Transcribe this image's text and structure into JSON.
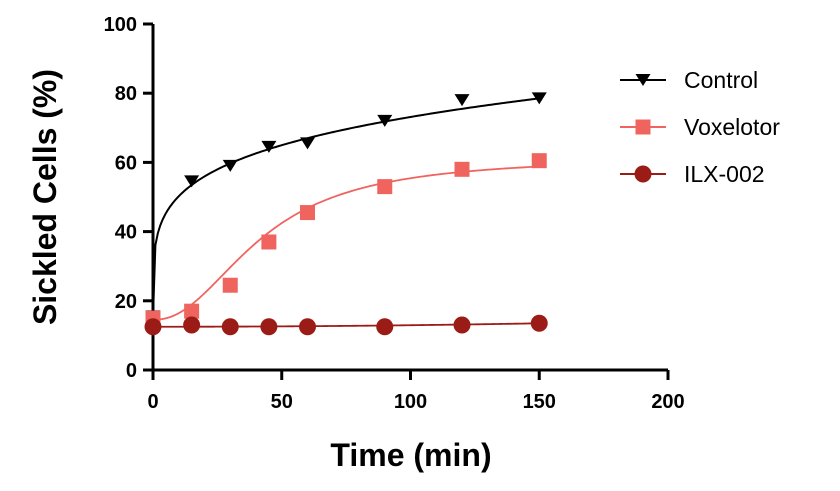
{
  "chart_data": {
    "type": "scatter",
    "title": "",
    "xlabel": "Time (min)",
    "ylabel": "Sickled Cells (%)",
    "xlim": [
      0,
      200
    ],
    "ylim": [
      0,
      100
    ],
    "xticks": [
      0,
      50,
      100,
      150,
      200
    ],
    "yticks": [
      0,
      20,
      40,
      60,
      80,
      100
    ],
    "grid": false,
    "legend_position": "right",
    "series": [
      {
        "name": "Control",
        "marker": "triangle-down",
        "color": "#000000",
        "x": [
          0,
          15,
          30,
          45,
          60,
          90,
          120,
          150
        ],
        "y": [
          15.5,
          54.5,
          59,
          64.5,
          65.5,
          72,
          78,
          78.5
        ]
      },
      {
        "name": "Voxelotor",
        "marker": "square",
        "color": "#f0645f",
        "x": [
          0,
          15,
          30,
          45,
          60,
          90,
          120,
          150
        ],
        "y": [
          15,
          17,
          24.5,
          37,
          45.5,
          53,
          58,
          60.5
        ]
      },
      {
        "name": "ILX-002",
        "marker": "circle",
        "color": "#9b1c17",
        "x": [
          0,
          15,
          30,
          45,
          60,
          90,
          120,
          150
        ],
        "y": [
          12.5,
          13,
          12.5,
          12.5,
          12.5,
          12.5,
          13,
          13.5
        ]
      }
    ]
  }
}
